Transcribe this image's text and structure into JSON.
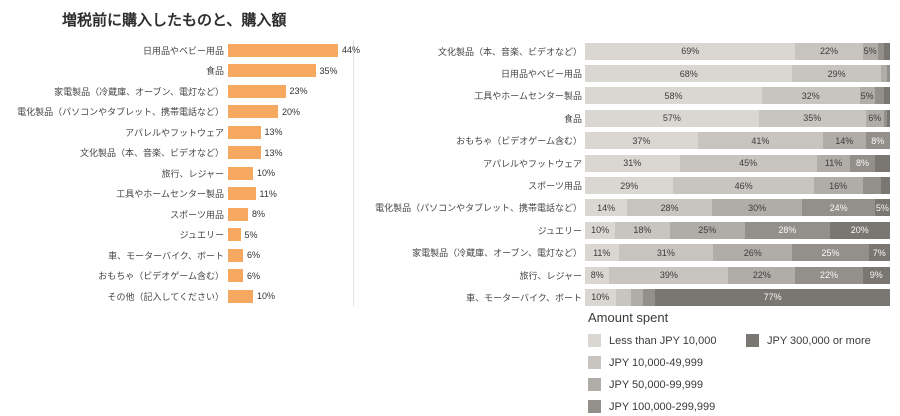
{
  "title": "増税前に購入したものと、購入額",
  "colors": {
    "bar_orange": "#F6A860",
    "grid_line": "#E4E4E4",
    "segment_text_dark": "#3D3D3D",
    "segment_text_light": "#F8F8F8"
  },
  "legend": {
    "title": "Amount spent",
    "items": [
      {
        "label": "Less than JPY 10,000",
        "color": "#DAD6D2"
      },
      {
        "label": "JPY 10,000-49,999",
        "color": "#C8C4C0"
      },
      {
        "label": "JPY 50,000-99,999",
        "color": "#B0ACA8"
      },
      {
        "label": "JPY 100,000-299,999",
        "color": "#938F8B"
      },
      {
        "label": "JPY 300,000 or more",
        "color": "#7A7672"
      }
    ]
  },
  "chart_data": [
    {
      "type": "bar",
      "orientation": "horizontal",
      "title": "増税前に購入したものと、購入額",
      "unit": "%",
      "xlim": [
        0,
        50
      ],
      "gridline_at": 50,
      "bar_color": "#F6A860",
      "categories": [
        "日用品やベビー用品",
        "食品",
        "家電製品（冷蔵庫、オーブン、電灯など）",
        "電化製品（パソコンやタブレット、携帯電話など）",
        "アパレルやフットウェア",
        "文化製品（本、音楽、ビデオなど）",
        "旅行、レジャー",
        "工具やホームセンター製品",
        "スポーツ用品",
        "ジュエリー",
        "車、モーターバイク、ボート",
        "おもちゃ（ビデオゲーム含む）",
        "その他（記入してください）"
      ],
      "values": [
        44,
        35,
        23,
        20,
        13,
        13,
        10,
        11,
        8,
        5,
        6,
        6,
        10
      ],
      "value_labels": [
        "44%",
        "35%",
        "23%",
        "20%",
        "13%",
        "13%",
        "10%",
        "11%",
        "8%",
        "5%",
        "6%",
        "6%",
        "10%"
      ]
    },
    {
      "type": "bar",
      "stacked": true,
      "stacked_100": true,
      "orientation": "horizontal",
      "legend_title": "Amount spent",
      "legend_position": "bottom",
      "series_names": [
        "Less than JPY 10,000",
        "JPY 10,000-49,999",
        "JPY 50,000-99,999",
        "JPY 100,000-299,999",
        "JPY 300,000 or more"
      ],
      "categories": [
        "文化製品（本、音楽、ビデオなど）",
        "日用品やベビー用品",
        "工具やホームセンター製品",
        "食品",
        "おもちゃ（ビデオゲーム含む）",
        "アパレルやフットウェア",
        "スポーツ用品",
        "電化製品（パソコンやタブレット、携帯電話など）",
        "ジュエリー",
        "家電製品（冷蔵庫、オーブン、電灯など）",
        "旅行、レジャー",
        "車、モーターバイク、ボート"
      ],
      "rows": [
        {
          "values": [
            69,
            22,
            5,
            2,
            2
          ],
          "labels": [
            "69%",
            "22%",
            "5%",
            "",
            ""
          ]
        },
        {
          "values": [
            68,
            29,
            2,
            1,
            0
          ],
          "labels": [
            "68%",
            "29%",
            "",
            "",
            ""
          ]
        },
        {
          "values": [
            58,
            32,
            5,
            3,
            2
          ],
          "labels": [
            "58%",
            "32%",
            "5%",
            "",
            ""
          ]
        },
        {
          "values": [
            57,
            35,
            6,
            1,
            1
          ],
          "labels": [
            "57%",
            "35%",
            "6%",
            "",
            ""
          ]
        },
        {
          "values": [
            37,
            41,
            14,
            8,
            0
          ],
          "labels": [
            "37%",
            "41%",
            "14%",
            "8%",
            ""
          ]
        },
        {
          "values": [
            31,
            45,
            11,
            8,
            5
          ],
          "labels": [
            "31%",
            "45%",
            "11%",
            "8%",
            ""
          ]
        },
        {
          "values": [
            29,
            46,
            16,
            6,
            3
          ],
          "labels": [
            "29%",
            "46%",
            "16%",
            "",
            ""
          ]
        },
        {
          "values": [
            14,
            28,
            30,
            24,
            5
          ],
          "labels": [
            "14%",
            "28%",
            "30%",
            "24%",
            "5%"
          ]
        },
        {
          "values": [
            10,
            18,
            25,
            28,
            20
          ],
          "labels": [
            "10%",
            "18%",
            "25%",
            "28%",
            "20%"
          ]
        },
        {
          "values": [
            11,
            31,
            26,
            25,
            7
          ],
          "labels": [
            "11%",
            "31%",
            "26%",
            "25%",
            "7%"
          ]
        },
        {
          "values": [
            8,
            39,
            22,
            22,
            9
          ],
          "labels": [
            "8%",
            "39%",
            "22%",
            "22%",
            "9%"
          ]
        },
        {
          "values": [
            10,
            5,
            4,
            4,
            77
          ],
          "labels": [
            "10%",
            "",
            "",
            "",
            "77%"
          ]
        }
      ]
    }
  ]
}
